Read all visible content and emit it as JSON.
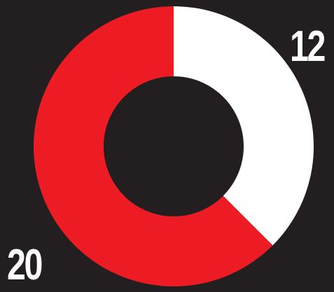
{
  "chart_data": {
    "type": "pie",
    "variant": "donut",
    "title": "",
    "slices": [
      {
        "label": "12",
        "value": 12,
        "color": "#ffffff"
      },
      {
        "label": "20",
        "value": 20,
        "color": "#ed1c24"
      }
    ],
    "legend": "none",
    "grid": false
  },
  "colors": {
    "background": "#231f20",
    "label": "#ffffff"
  }
}
